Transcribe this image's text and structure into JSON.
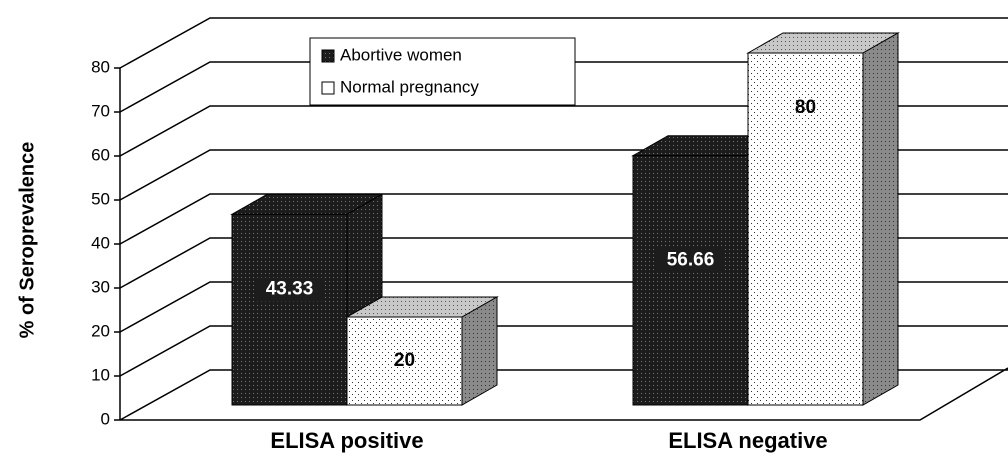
{
  "chart_data": {
    "type": "bar",
    "y_label": "% of Seroprevalence",
    "categories": [
      "ELISA positive",
      "ELISA negative"
    ],
    "series": [
      {
        "name": "Abortive women",
        "color": "#1c1c1c",
        "values": [
          43.33,
          56.66
        ]
      },
      {
        "name": "Normal pregnancy",
        "color": "#ffffff",
        "values": [
          20,
          80
        ]
      }
    ],
    "ylim": [
      0,
      80
    ],
    "yticks": [
      0,
      10,
      20,
      30,
      40,
      50,
      60,
      70,
      80
    ],
    "grid": true
  }
}
